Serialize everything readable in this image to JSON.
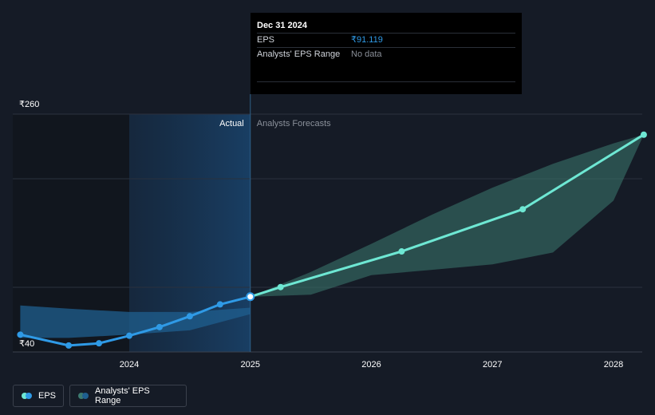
{
  "tooltip": {
    "date": "Dec 31 2024",
    "eps_label": "EPS",
    "eps_value": "₹91.119",
    "range_label": "Analysts' EPS Range",
    "range_value": "No data"
  },
  "labels": {
    "actual": "Actual",
    "forecast": "Analysts Forecasts"
  },
  "legend": {
    "eps": "EPS",
    "range": "Analysts' EPS Range"
  },
  "colors": {
    "eps_actual": "#2f9ae6",
    "eps_forecast": "#6ee7d3",
    "range_actual": "#1f5f8f",
    "range_forecast": "#3c7a70",
    "background": "#151b26"
  },
  "chart_data": {
    "type": "line",
    "title": "",
    "xlabel": "",
    "ylabel": "",
    "ylim": [
      40,
      260
    ],
    "y_tick_labels": [
      "₹260",
      "₹40"
    ],
    "x_ticks": [
      2024,
      2025,
      2026,
      2027,
      2028
    ],
    "xlim": [
      2023.1,
      2028.25
    ],
    "divider_x": 2025.0,
    "series": [
      {
        "name": "EPS (Actual)",
        "x": [
          2023.1,
          2023.5,
          2023.75,
          2024.0,
          2024.25,
          2024.5,
          2024.75,
          2025.0
        ],
        "values": [
          56,
          46,
          48,
          55,
          63,
          73,
          84,
          91.119
        ]
      },
      {
        "name": "EPS (Forecast)",
        "x": [
          2025.0,
          2025.25,
          2026.25,
          2027.25,
          2028.25
        ],
        "values": [
          91.119,
          100,
          133,
          172,
          241
        ]
      }
    ],
    "range_actual": {
      "x": [
        2023.1,
        2023.5,
        2024.0,
        2024.5,
        2025.0
      ],
      "upper": [
        83,
        80,
        77,
        77,
        81
      ],
      "lower": [
        53,
        53,
        56,
        60,
        75
      ]
    },
    "range_forecast": {
      "x": [
        2025.0,
        2025.5,
        2026.0,
        2026.5,
        2027.0,
        2027.5,
        2028.0,
        2028.25
      ],
      "upper": [
        91,
        114,
        140,
        167,
        192,
        214,
        233,
        241
      ],
      "lower": [
        91,
        93,
        111,
        116,
        121,
        132,
        180,
        241
      ]
    }
  }
}
